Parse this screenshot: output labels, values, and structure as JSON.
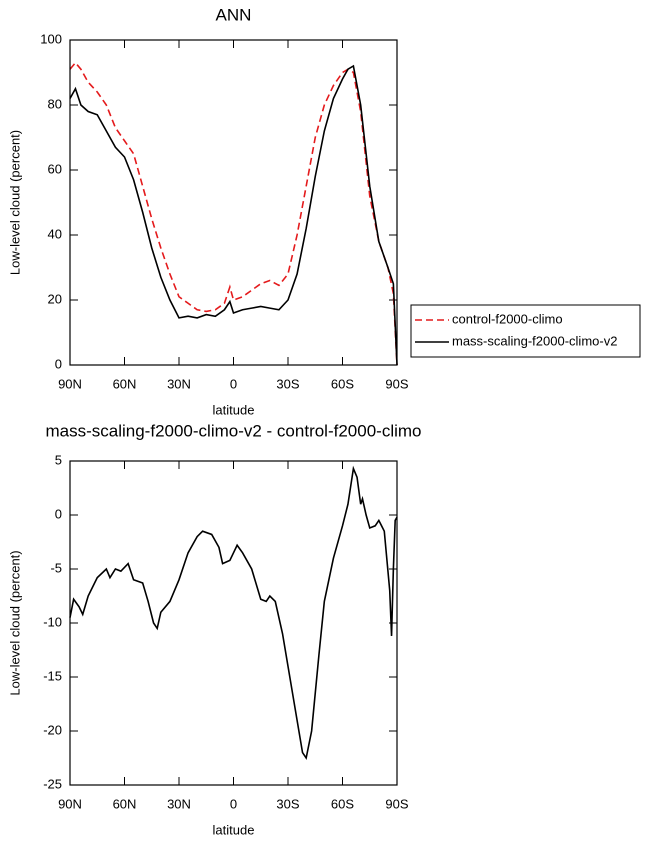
{
  "chart_data": [
    {
      "type": "line",
      "title": "ANN",
      "xlabel": "latitude",
      "ylabel": "Low-level cloud (percent)",
      "x": [
        90,
        87,
        84,
        80,
        75,
        70,
        65,
        60,
        55,
        50,
        45,
        40,
        35,
        30,
        25,
        20,
        15,
        10,
        5,
        2,
        0,
        -5,
        -10,
        -15,
        -20,
        -25,
        -30,
        -35,
        -40,
        -45,
        -50,
        -55,
        -60,
        -63,
        -66,
        -70,
        -75,
        -80,
        -85,
        -88,
        -90
      ],
      "series": [
        {
          "name": "control-f2000-climo",
          "color": "#e41a1c",
          "line_style": "dashed",
          "values": [
            91,
            93,
            91,
            87,
            84,
            80,
            73,
            69,
            65,
            55,
            45,
            36,
            28,
            21,
            19,
            17,
            16.5,
            17,
            19,
            24,
            20,
            21,
            23,
            25,
            26,
            24.5,
            28,
            40,
            55,
            70,
            80,
            86,
            90,
            91,
            90,
            78,
            52,
            38,
            30,
            22,
            0
          ]
        },
        {
          "name": "mass-scaling-f2000-climo-v2",
          "color": "#000000",
          "line_style": "solid",
          "values": [
            82,
            85,
            80,
            78,
            77,
            72,
            67,
            64,
            57,
            47,
            36,
            27,
            20,
            14.5,
            15,
            14.5,
            15.5,
            15,
            17,
            19.5,
            16,
            17,
            17.5,
            18,
            17.5,
            17,
            20,
            28,
            42,
            58,
            72,
            82,
            88,
            91,
            92,
            80,
            55,
            38,
            30,
            25,
            0
          ]
        }
      ],
      "xlim": [
        90,
        -90
      ],
      "xticks": [
        {
          "value": 90,
          "label": "90N"
        },
        {
          "value": 60,
          "label": "60N"
        },
        {
          "value": 30,
          "label": "30N"
        },
        0,
        {
          "value": -30,
          "label": "30S"
        },
        {
          "value": -60,
          "label": "60S"
        },
        {
          "value": -90,
          "label": "90S"
        }
      ],
      "ylim": [
        0,
        100
      ],
      "yticks": [
        0,
        20,
        40,
        60,
        80,
        100
      ],
      "legend": "right"
    },
    {
      "type": "line",
      "title": "mass-scaling-f2000-climo-v2 - control-f2000-climo",
      "xlabel": "latitude",
      "ylabel": "Low-level cloud (percent)",
      "x": [
        90,
        88,
        85,
        83,
        80,
        75,
        70,
        68,
        65,
        62,
        58,
        55,
        50,
        47,
        44,
        42,
        40,
        35,
        30,
        25,
        20,
        17,
        12,
        8,
        6,
        2,
        0,
        -2,
        -5,
        -10,
        -15,
        -18,
        -20,
        -23,
        -27,
        -30,
        -35,
        -38,
        -40,
        -43,
        -47,
        -50,
        -55,
        -60,
        -63,
        -66,
        -68,
        -70,
        -71,
        -73,
        -75,
        -78,
        -80,
        -83,
        -86,
        -87,
        -88,
        -89,
        -90
      ],
      "values": [
        -9.5,
        -7.8,
        -8.5,
        -9.2,
        -7.5,
        -5.8,
        -5,
        -5.8,
        -5,
        -5.2,
        -4.5,
        -6,
        -6.3,
        -8,
        -10,
        -10.5,
        -9,
        -8,
        -6,
        -3.5,
        -2,
        -1.5,
        -1.8,
        -3,
        -4.5,
        -4.2,
        -3.5,
        -2.8,
        -3.5,
        -5,
        -7.8,
        -8,
        -7.5,
        -8,
        -11,
        -14,
        -19,
        -22,
        -22.5,
        -20,
        -13,
        -8,
        -4,
        -1,
        1,
        4.3,
        3.5,
        1,
        1.5,
        0,
        -1.2,
        -1,
        -0.5,
        -1.5,
        -7,
        -11.2,
        -5,
        -0.5,
        -0.2
      ],
      "color": "#000000",
      "xlim": [
        90,
        -90
      ],
      "xticks": [
        {
          "value": 90,
          "label": "90N"
        },
        {
          "value": 60,
          "label": "60N"
        },
        {
          "value": 30,
          "label": "30N"
        },
        0,
        {
          "value": -30,
          "label": "30S"
        },
        {
          "value": -60,
          "label": "60S"
        },
        {
          "value": -90,
          "label": "90S"
        }
      ],
      "ylim": [
        -25,
        5
      ],
      "yticks": [
        -25,
        -20,
        -15,
        -10,
        -5,
        0,
        5
      ]
    }
  ]
}
